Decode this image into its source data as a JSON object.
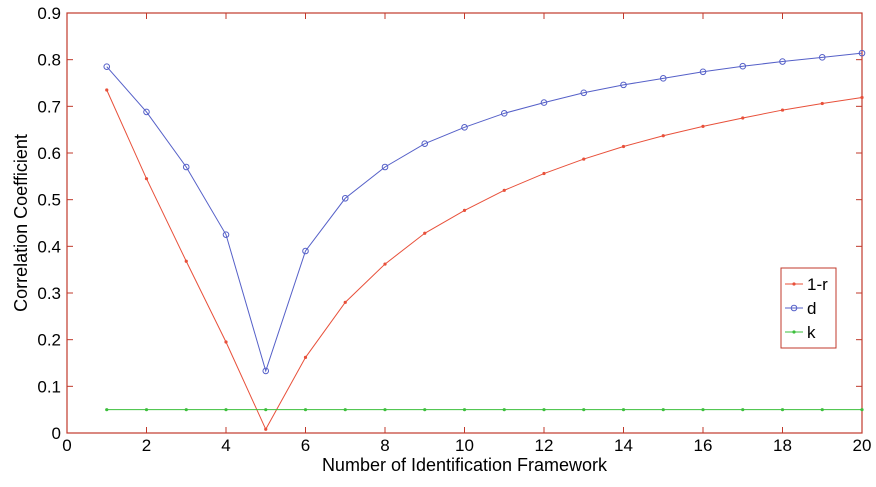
{
  "chart_data": {
    "type": "line",
    "title": "",
    "xlabel": "Number of Identification Framework",
    "ylabel": "Correlation Coefficient",
    "xlim": [
      0,
      20
    ],
    "ylim": [
      0,
      0.9
    ],
    "xticks": [
      0,
      2,
      4,
      6,
      8,
      10,
      12,
      14,
      16,
      18,
      20
    ],
    "yticks": [
      0,
      0.1,
      0.2,
      0.3,
      0.4,
      0.5,
      0.6,
      0.7,
      0.8,
      0.9
    ],
    "xtick_labels": [
      "0",
      "2",
      "4",
      "6",
      "8",
      "10",
      "12",
      "14",
      "16",
      "18",
      "20"
    ],
    "ytick_labels": [
      "0",
      "0.1",
      "0.2",
      "0.3",
      "0.4",
      "0.5",
      "0.6",
      "0.7",
      "0.8",
      "0.9"
    ],
    "grid": false,
    "legend_position": "right",
    "x": [
      1,
      2,
      3,
      4,
      5,
      6,
      7,
      8,
      9,
      10,
      11,
      12,
      13,
      14,
      15,
      16,
      17,
      18,
      19,
      20
    ],
    "series": [
      {
        "name": "1-r",
        "color": "#e8503a",
        "marker": "dot",
        "values": [
          0.735,
          0.545,
          0.368,
          0.195,
          0.008,
          0.162,
          0.28,
          0.362,
          0.428,
          0.477,
          0.52,
          0.556,
          0.587,
          0.614,
          0.637,
          0.657,
          0.675,
          0.692,
          0.706,
          0.719
        ]
      },
      {
        "name": "d",
        "color": "#5560c8",
        "marker": "circle",
        "values": [
          0.785,
          0.688,
          0.57,
          0.425,
          0.133,
          0.39,
          0.503,
          0.57,
          0.62,
          0.655,
          0.685,
          0.708,
          0.729,
          0.746,
          0.76,
          0.774,
          0.786,
          0.796,
          0.805,
          0.814
        ]
      },
      {
        "name": "k",
        "color": "#3cbf3c",
        "marker": "dot",
        "values": [
          0.05,
          0.05,
          0.05,
          0.05,
          0.05,
          0.05,
          0.05,
          0.05,
          0.05,
          0.05,
          0.05,
          0.05,
          0.05,
          0.05,
          0.05,
          0.05,
          0.05,
          0.05,
          0.05,
          0.05
        ]
      }
    ]
  },
  "colors": {
    "axis_frame": "#c0392b",
    "tick_text": "#000000"
  }
}
